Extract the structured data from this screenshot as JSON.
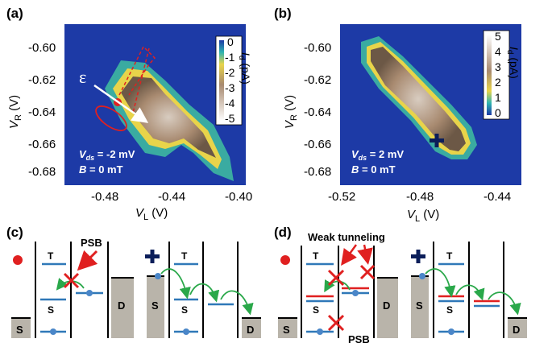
{
  "colors": {
    "background_blue": "#1d3aa6",
    "state_blue": "#2f78b8",
    "arrow_green": "#2aa84a",
    "cross_red": "#e02020",
    "ellipse_red": "#e02020",
    "lead_gray": "#b9b4aa",
    "dot_blue": "#4a86c8"
  },
  "panel_a": {
    "label": "(a)",
    "x_axis_label": "V",
    "x_axis_sub": "L",
    "x_axis_unit": " (V)",
    "y_axis_label": "V",
    "y_axis_sub": "R",
    "y_axis_unit": " (V)",
    "x_ticks": [
      "-0.48",
      "-0.44",
      "-0.40"
    ],
    "y_ticks": [
      "-0.60",
      "-0.62",
      "-0.64",
      "-0.66",
      "-0.68"
    ],
    "colorbar_ticks": [
      "0",
      "-1",
      "-2",
      "-3",
      "-4",
      "-5"
    ],
    "colorbar_label": "I",
    "colorbar_sub": "d",
    "colorbar_unit": " (pA)",
    "epsilon_label": "ε",
    "anno_vds": "V",
    "anno_vds_sub": "ds",
    "anno_vds_value": " = -2 mV",
    "anno_b": "B",
    "anno_b_value": " = 0 mT"
  },
  "panel_b": {
    "label": "(b)",
    "x_axis_label": "V",
    "x_axis_sub": "L",
    "x_axis_unit": " (V)",
    "y_axis_label": "V",
    "y_axis_sub": "R",
    "y_axis_unit": " (V)",
    "x_ticks": [
      "-0.52",
      "-0.48",
      "-0.44"
    ],
    "y_ticks": [
      "-0.60",
      "-0.62",
      "-0.64",
      "-0.66",
      "-0.68"
    ],
    "colorbar_ticks": [
      "5",
      "4",
      "3",
      "2",
      "1",
      "0"
    ],
    "colorbar_label": "I",
    "colorbar_sub": "d",
    "colorbar_unit": " (pA)",
    "anno_vds": "V",
    "anno_vds_sub": "ds",
    "anno_vds_value": " = 2 mV",
    "anno_b": "B",
    "anno_b_value": " = 0 mT"
  },
  "panel_c": {
    "label": "(c)",
    "psb_label": "PSB",
    "left_diagram": {
      "source": "S",
      "drain": "D",
      "triplet": "T",
      "singlet": "S"
    },
    "right_diagram": {
      "source": "S",
      "drain": "D",
      "triplet": "T",
      "singlet": "S"
    }
  },
  "panel_d": {
    "label": "(d)",
    "weak_tunneling_label": "Weak tunneling",
    "psb_label": "PSB",
    "left_diagram": {
      "source": "S",
      "drain": "D",
      "triplet": "T",
      "singlet": "S"
    },
    "right_diagram": {
      "source": "S",
      "drain": "D",
      "triplet": "T",
      "singlet": "S"
    }
  }
}
